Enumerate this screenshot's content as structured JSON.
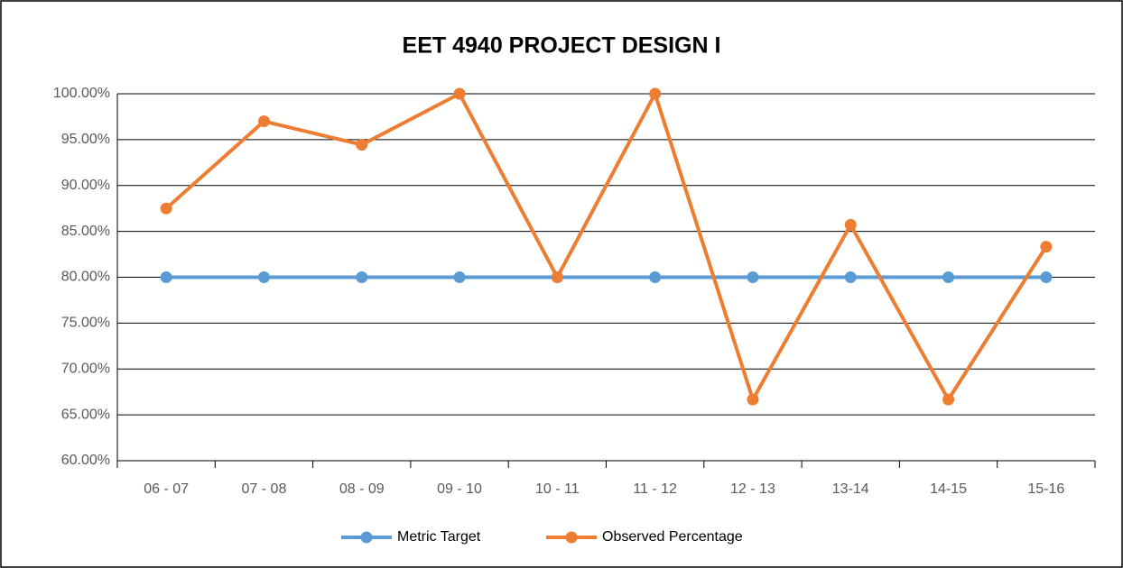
{
  "chart_data": {
    "type": "line",
    "title": "EET 4940 PROJECT DESIGN I",
    "categories": [
      "06 - 07",
      "07 - 08",
      "08 - 09",
      "09 - 10",
      "10 - 11",
      "11 - 12",
      "12 - 13",
      "13-14",
      "14-15",
      "15-16"
    ],
    "series": [
      {
        "name": "Metric Target",
        "color": "#5b9bd5",
        "values": [
          80,
          80,
          80,
          80,
          80,
          80,
          80,
          80,
          80,
          80
        ]
      },
      {
        "name": "Observed Percentage",
        "color": "#ed7d31",
        "values": [
          87.5,
          97,
          94.44,
          100,
          80,
          100,
          66.67,
          85.71,
          66.67,
          83.33
        ]
      }
    ],
    "ylim": [
      60,
      100
    ],
    "yticks": [
      {
        "value": 60,
        "label": "60.00%"
      },
      {
        "value": 65,
        "label": "65.00%"
      },
      {
        "value": 70,
        "label": "70.00%"
      },
      {
        "value": 75,
        "label": "75.00%"
      },
      {
        "value": 80,
        "label": "80.00%"
      },
      {
        "value": 85,
        "label": "85.00%"
      },
      {
        "value": 90,
        "label": "90.00%"
      },
      {
        "value": 95,
        "label": "95.00%"
      },
      {
        "value": 100,
        "label": "100.00%"
      }
    ],
    "grid": true,
    "legend": "bottom"
  }
}
